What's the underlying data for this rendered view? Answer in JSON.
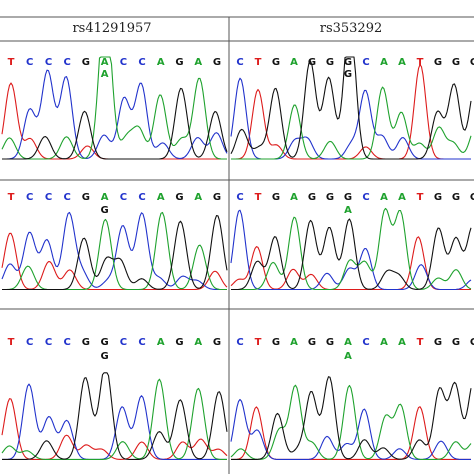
{
  "colors": {
    "A": "#1fa22e",
    "C": "#2233cc",
    "G": "#111111",
    "T": "#dd1c1c",
    "grid": "#555555"
  },
  "columns": [
    {
      "header": "rs41291957",
      "panels": [
        {
          "sequence": [
            "T",
            "C",
            "C",
            "C",
            "G",
            "A",
            "C",
            "C",
            "A",
            "G",
            "A",
            "G"
          ],
          "variant": "A"
        },
        {
          "sequence": [
            "T",
            "C",
            "C",
            "C",
            "G",
            "A",
            "C",
            "C",
            "A",
            "G",
            "A",
            "G"
          ],
          "variant": "G"
        },
        {
          "sequence": [
            "T",
            "C",
            "C",
            "C",
            "G",
            "G",
            "C",
            "C",
            "A",
            "G",
            "A",
            "G"
          ],
          "variant": "G"
        }
      ]
    },
    {
      "header": "rs353292",
      "panels": [
        {
          "sequence": [
            "C",
            "T",
            "G",
            "A",
            "G",
            "G",
            "G",
            "C",
            "A",
            "A",
            "T",
            "G",
            "G",
            "G"
          ],
          "variant": "G"
        },
        {
          "sequence": [
            "C",
            "T",
            "G",
            "A",
            "G",
            "G",
            "G",
            "C",
            "A",
            "A",
            "T",
            "G",
            "G",
            "G"
          ],
          "variant": "A"
        },
        {
          "sequence": [
            "C",
            "T",
            "G",
            "A",
            "G",
            "G",
            "A",
            "C",
            "A",
            "A",
            "T",
            "G",
            "G",
            "G"
          ],
          "variant": "A"
        }
      ]
    }
  ]
}
